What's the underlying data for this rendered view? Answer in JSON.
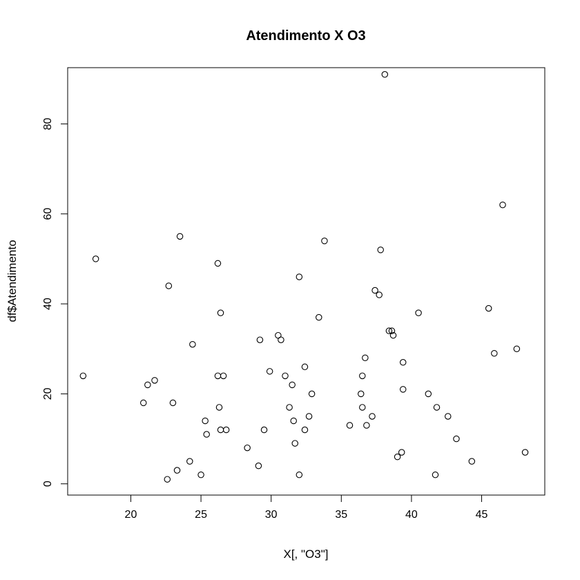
{
  "chart_data": {
    "type": "scatter",
    "title": "Atendimento X O3",
    "xlabel": "X[, \"O3\"]",
    "ylabel": "df$Atendimento",
    "xlim": [
      15.5,
      49.5
    ],
    "ylim": [
      -2.5,
      92.5
    ],
    "xticks": [
      20,
      25,
      30,
      35,
      40,
      45
    ],
    "yticks": [
      0,
      20,
      40,
      60,
      80
    ],
    "marker": "open-circle",
    "point_color": "#000000",
    "points": [
      {
        "x": 16.6,
        "y": 24
      },
      {
        "x": 17.5,
        "y": 50
      },
      {
        "x": 20.9,
        "y": 18
      },
      {
        "x": 21.2,
        "y": 22
      },
      {
        "x": 21.7,
        "y": 23
      },
      {
        "x": 22.6,
        "y": 1
      },
      {
        "x": 22.7,
        "y": 44
      },
      {
        "x": 23.0,
        "y": 18
      },
      {
        "x": 23.3,
        "y": 3
      },
      {
        "x": 23.5,
        "y": 55
      },
      {
        "x": 24.2,
        "y": 5
      },
      {
        "x": 24.4,
        "y": 31
      },
      {
        "x": 25.0,
        "y": 2
      },
      {
        "x": 25.3,
        "y": 14
      },
      {
        "x": 25.4,
        "y": 11
      },
      {
        "x": 26.2,
        "y": 49
      },
      {
        "x": 26.2,
        "y": 24
      },
      {
        "x": 26.3,
        "y": 17
      },
      {
        "x": 26.4,
        "y": 38
      },
      {
        "x": 26.4,
        "y": 12
      },
      {
        "x": 26.6,
        "y": 24
      },
      {
        "x": 26.8,
        "y": 12
      },
      {
        "x": 28.3,
        "y": 8
      },
      {
        "x": 29.1,
        "y": 4
      },
      {
        "x": 29.2,
        "y": 32
      },
      {
        "x": 29.5,
        "y": 12
      },
      {
        "x": 29.9,
        "y": 25
      },
      {
        "x": 30.5,
        "y": 33
      },
      {
        "x": 30.7,
        "y": 32
      },
      {
        "x": 31.0,
        "y": 24
      },
      {
        "x": 31.3,
        "y": 17
      },
      {
        "x": 31.5,
        "y": 22
      },
      {
        "x": 31.6,
        "y": 14
      },
      {
        "x": 31.7,
        "y": 9
      },
      {
        "x": 32.0,
        "y": 46
      },
      {
        "x": 32.0,
        "y": 2
      },
      {
        "x": 32.4,
        "y": 26
      },
      {
        "x": 32.4,
        "y": 12
      },
      {
        "x": 32.7,
        "y": 15
      },
      {
        "x": 32.9,
        "y": 20
      },
      {
        "x": 33.4,
        "y": 37
      },
      {
        "x": 33.8,
        "y": 54
      },
      {
        "x": 35.6,
        "y": 13
      },
      {
        "x": 36.4,
        "y": 20
      },
      {
        "x": 36.5,
        "y": 24
      },
      {
        "x": 36.5,
        "y": 17
      },
      {
        "x": 36.7,
        "y": 28
      },
      {
        "x": 36.8,
        "y": 13
      },
      {
        "x": 37.2,
        "y": 15
      },
      {
        "x": 37.4,
        "y": 43
      },
      {
        "x": 37.7,
        "y": 42
      },
      {
        "x": 37.8,
        "y": 52
      },
      {
        "x": 38.1,
        "y": 91
      },
      {
        "x": 38.4,
        "y": 34
      },
      {
        "x": 38.6,
        "y": 34
      },
      {
        "x": 38.7,
        "y": 33
      },
      {
        "x": 39.0,
        "y": 6
      },
      {
        "x": 39.3,
        "y": 7
      },
      {
        "x": 39.4,
        "y": 27
      },
      {
        "x": 39.4,
        "y": 21
      },
      {
        "x": 40.5,
        "y": 38
      },
      {
        "x": 41.2,
        "y": 20
      },
      {
        "x": 41.7,
        "y": 2
      },
      {
        "x": 41.8,
        "y": 17
      },
      {
        "x": 42.6,
        "y": 15
      },
      {
        "x": 43.2,
        "y": 10
      },
      {
        "x": 44.3,
        "y": 5
      },
      {
        "x": 45.5,
        "y": 39
      },
      {
        "x": 45.9,
        "y": 29
      },
      {
        "x": 46.5,
        "y": 62
      },
      {
        "x": 47.5,
        "y": 30
      },
      {
        "x": 48.1,
        "y": 7
      }
    ]
  }
}
